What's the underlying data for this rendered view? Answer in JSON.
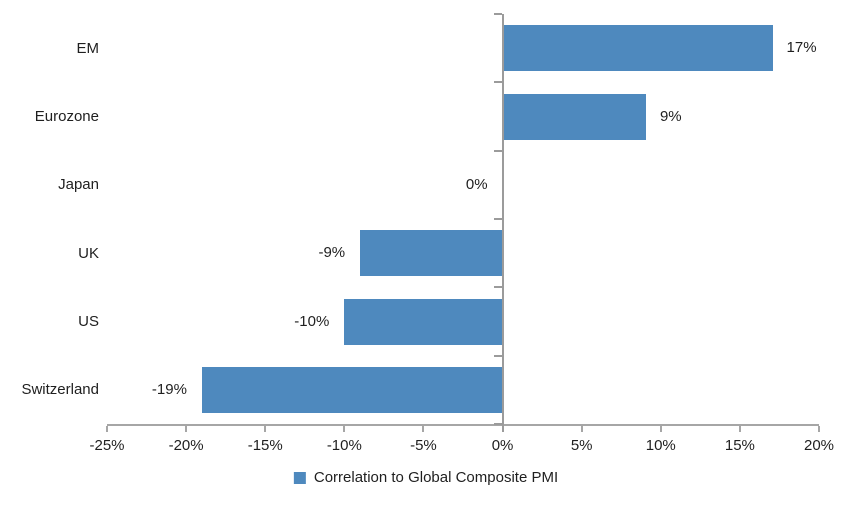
{
  "chart_data": {
    "type": "bar",
    "orientation": "horizontal",
    "title": "",
    "categories": [
      "EM",
      "Eurozone",
      "Japan",
      "UK",
      "US",
      "Switzerland"
    ],
    "values": [
      17,
      9,
      0,
      -9,
      -10,
      -19
    ],
    "value_labels": [
      "17%",
      "9%",
      "0%",
      "-9%",
      "-10%",
      "-19%"
    ],
    "series": [
      {
        "name": "Correlation to Global Composite PMI",
        "values": [
          17,
          9,
          0,
          -9,
          -10,
          -19
        ]
      }
    ],
    "legend": "Correlation to Global Composite PMI",
    "legend_position": "bottom-center",
    "xlim": [
      -25,
      20
    ],
    "x_tick_step": 5,
    "x_tick_labels": [
      "-25%",
      "-20%",
      "-15%",
      "-10%",
      "-5%",
      "0%",
      "5%",
      "10%",
      "15%",
      "20%"
    ],
    "grid": "off",
    "colors": {
      "bar": "#4E89BE",
      "axis": "#A6A6A6",
      "zero_axis": "#9B9B9B",
      "text": "#1F1F1F"
    }
  }
}
